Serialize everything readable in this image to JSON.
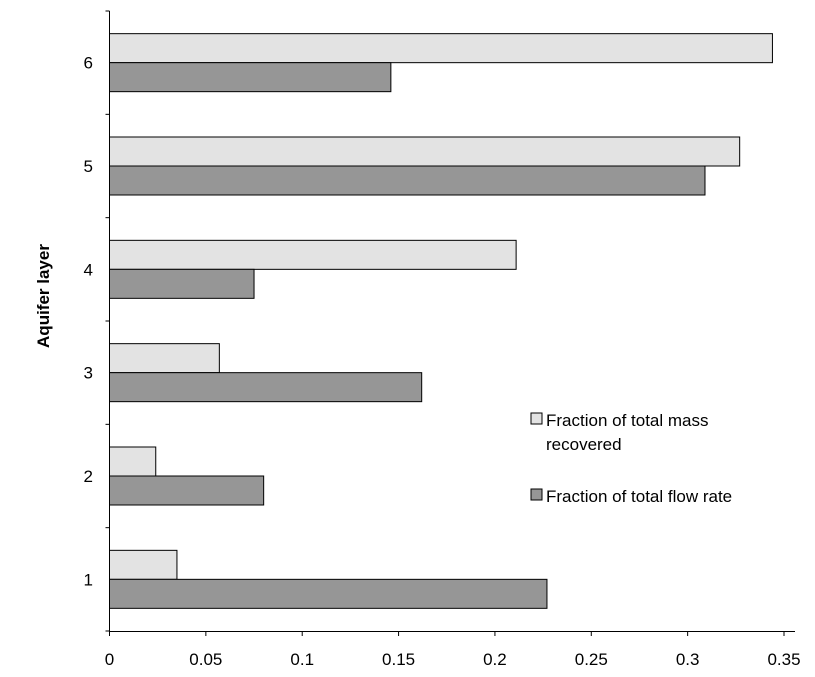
{
  "chart_data": {
    "type": "bar",
    "orientation": "horizontal",
    "categories": [
      "1",
      "2",
      "3",
      "4",
      "5",
      "6"
    ],
    "series": [
      {
        "name_lines": [
          "Fraction of total mass",
          "recovered"
        ],
        "color": "#e3e3e3",
        "values": [
          0.035,
          0.024,
          0.057,
          0.211,
          0.327,
          0.344
        ]
      },
      {
        "name_lines": [
          "Fraction of total flow rate"
        ],
        "color": "#969696",
        "values": [
          0.227,
          0.08,
          0.162,
          0.075,
          0.309,
          0.146
        ]
      }
    ],
    "xlim": [
      0,
      0.35
    ],
    "xticks": [
      "0",
      "0.05",
      "0.1",
      "0.15",
      "0.2",
      "0.25",
      "0.3",
      "0.35"
    ],
    "xlabel": "",
    "ylabel": "Aquifer layer",
    "grid": false,
    "legend_position": "center-right",
    "bar_edge_color": "#000000"
  }
}
